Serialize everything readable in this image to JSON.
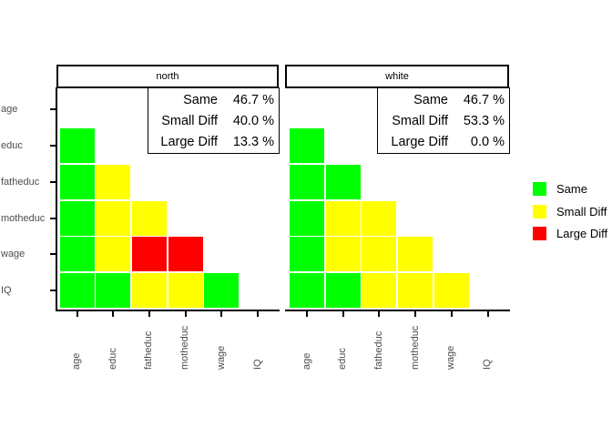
{
  "figure": {
    "background": "#ffffff"
  },
  "colors": {
    "same": "#00ff00",
    "small": "#ffff00",
    "large": "#ff0000",
    "axis": "#000000",
    "tick_label": "#4d4d4d"
  },
  "panels": [
    {
      "title": "north",
      "stats": [
        {
          "label": "Same",
          "value": "46.7 %"
        },
        {
          "label": "Small Diff",
          "value": "40.0 %"
        },
        {
          "label": "Large Diff",
          "value": "13.3 %"
        }
      ]
    },
    {
      "title": "white",
      "stats": [
        {
          "label": "Same",
          "value": "46.7 %"
        },
        {
          "label": "Small Diff",
          "value": "53.3 %"
        },
        {
          "label": "Large Diff",
          "value": "0.0 %"
        }
      ]
    }
  ],
  "legend": {
    "items": [
      {
        "key": "same",
        "label": "Same",
        "color": "#00ff00"
      },
      {
        "key": "small",
        "label": "Small Diff",
        "color": "#ffff00"
      },
      {
        "key": "large",
        "label": "Large Diff",
        "color": "#ff0000"
      }
    ]
  },
  "chart_data": {
    "type": "heatmap",
    "facet_titles": [
      "north",
      "white"
    ],
    "variables": [
      "age",
      "educ",
      "fatheduc",
      "motheduc",
      "wage",
      "IQ"
    ],
    "x_tick_labels": [
      "age",
      "educ",
      "fatheduc",
      "motheduc",
      "wage",
      "IQ"
    ],
    "y_tick_labels": [
      "age",
      "educ",
      "fatheduc",
      "motheduc",
      "wage",
      "IQ"
    ],
    "legend_entries": [
      "Same",
      "Small Diff",
      "Large Diff"
    ],
    "legend_position": "right",
    "cell_categories": {
      "same": "Same",
      "small": "Small Diff",
      "large": "Large Diff"
    },
    "matrices": {
      "north": [
        [
          null,
          null,
          null,
          null,
          null,
          null
        ],
        [
          "same",
          null,
          null,
          null,
          null,
          null
        ],
        [
          "same",
          "small",
          null,
          null,
          null,
          null
        ],
        [
          "same",
          "small",
          "small",
          null,
          null,
          null
        ],
        [
          "same",
          "small",
          "large",
          "large",
          null,
          null
        ],
        [
          "same",
          "same",
          "small",
          "small",
          "same",
          null
        ]
      ],
      "white": [
        [
          null,
          null,
          null,
          null,
          null,
          null
        ],
        [
          "same",
          null,
          null,
          null,
          null,
          null
        ],
        [
          "same",
          "same",
          null,
          null,
          null,
          null
        ],
        [
          "same",
          "small",
          "small",
          null,
          null,
          null
        ],
        [
          "same",
          "small",
          "small",
          "small",
          null,
          null
        ],
        [
          "same",
          "same",
          "small",
          "small",
          "small",
          null
        ]
      ]
    },
    "facet_stats": [
      {
        "facet": "north",
        "Same": 46.7,
        "Small Diff": 40.0,
        "Large Diff": 13.3
      },
      {
        "facet": "white",
        "Same": 46.7,
        "Small Diff": 53.3,
        "Large Diff": 0.0
      }
    ]
  }
}
